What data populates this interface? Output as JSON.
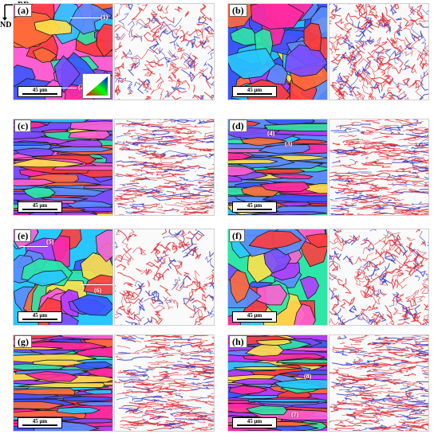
{
  "axes": {
    "rd_label": "RD",
    "nd_label": "ND"
  },
  "panels": [
    {
      "label": "(a)",
      "scale": "45 μm",
      "markers": [
        "(1)",
        "(2)"
      ]
    },
    {
      "label": "(b)",
      "scale": "45 μm"
    },
    {
      "label": "(c)",
      "scale": "45 μm"
    },
    {
      "label": "(d)",
      "scale": "45 μm",
      "markers": [
        "(4)",
        "(3)"
      ]
    },
    {
      "label": "(e)",
      "scale": "45 μm",
      "markers": [
        "(5)",
        "(6)"
      ]
    },
    {
      "label": "(f)",
      "scale": "45 μm"
    },
    {
      "label": "(g)",
      "scale": "45 μm"
    },
    {
      "label": "(h)",
      "scale": "45 μm",
      "markers": [
        "(8)",
        "(7)"
      ]
    }
  ],
  "colors": {
    "ipf": [
      "#ff2aa0",
      "#ff6a3a",
      "#3a56ff",
      "#29c7ff",
      "#b23cff",
      "#ff3d3d",
      "#7a4dff",
      "#2ee6a8",
      "#ffe14a",
      "#ff5fd1",
      "#5b8cff"
    ],
    "boundary_low": "#e0262e",
    "boundary_high": "#2a35c7",
    "grain_edge": "#1a1a1a"
  }
}
